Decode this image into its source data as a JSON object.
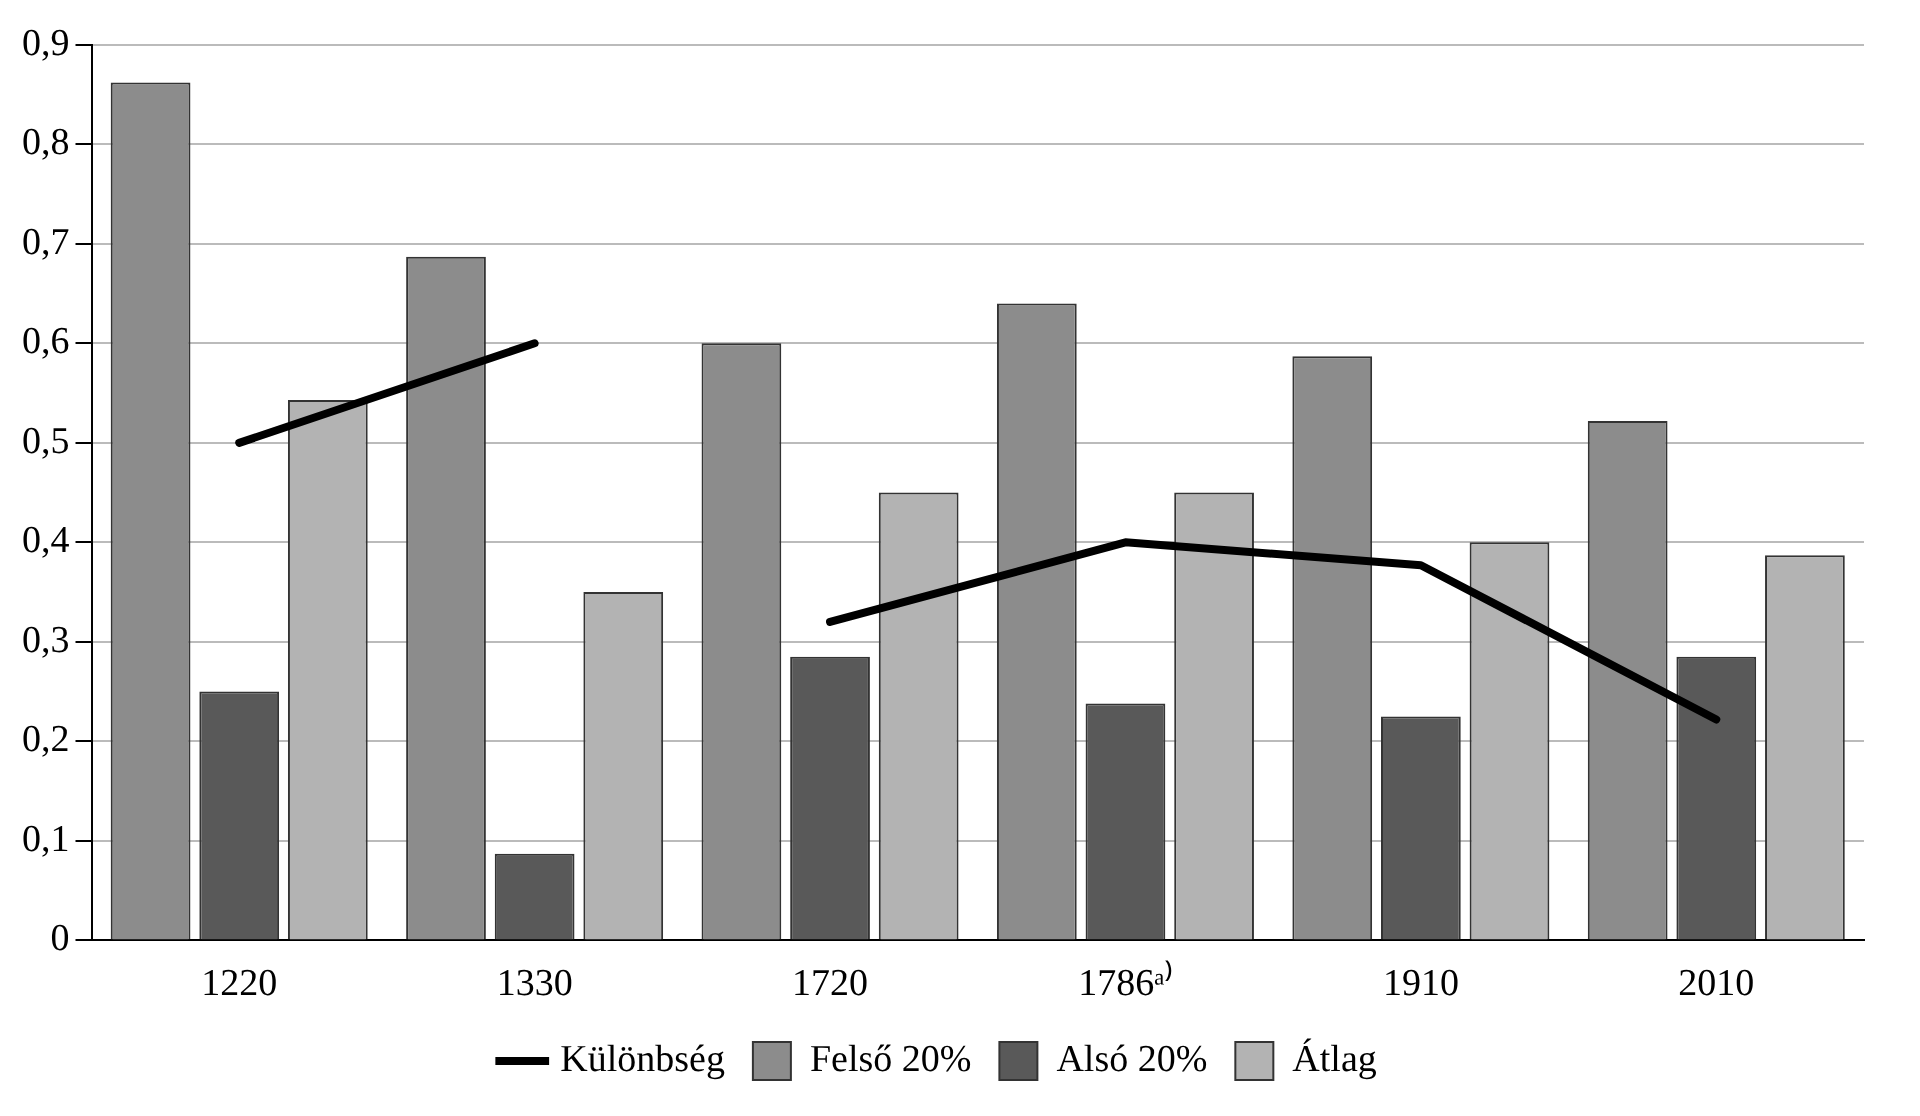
{
  "chart_data": {
    "type": "bar",
    "categories": [
      "1220",
      "1330",
      "1720",
      "1786ᵃ⁾",
      "1910",
      "2010"
    ],
    "series": [
      {
        "name": "Felső 20%",
        "color": "#8c8c8c",
        "values": [
          0.862,
          0.687,
          0.6,
          0.64,
          0.587,
          0.522
        ]
      },
      {
        "name": "Alsó 20%",
        "color": "#595959",
        "values": [
          0.25,
          0.087,
          0.285,
          0.238,
          0.225,
          0.285
        ]
      },
      {
        "name": "Átlag",
        "color": "#b3b3b3",
        "values": [
          0.543,
          0.35,
          0.45,
          0.45,
          0.4,
          0.387
        ]
      },
      {
        "name": "Különbség",
        "type": "line",
        "color": "#000000",
        "values": [
          0.5,
          0.6,
          null,
          null,
          null,
          null
        ]
      },
      {
        "type": "line",
        "color": "#000000",
        "values": [
          null,
          null,
          0.32,
          0.4,
          0.377,
          0.222
        ]
      }
    ],
    "ylim": [
      0,
      0.9
    ],
    "yticks": [
      0,
      {
        "value": 0.1,
        "label": "0,1"
      },
      {
        "value": 0.2,
        "label": "0,2"
      },
      {
        "value": 0.3,
        "label": "0,3"
      },
      {
        "value": 0.4,
        "label": "0,4"
      },
      {
        "value": 0.5,
        "label": "0,5"
      },
      {
        "value": 0.6,
        "label": "0,6"
      },
      {
        "value": 0.7,
        "label": "0,7"
      },
      {
        "value": 0.8,
        "label": "0,8"
      },
      {
        "value": 0.9,
        "label": "0,9"
      }
    ],
    "grid": "y",
    "legend": "bottom",
    "marker": "none",
    "line_style": "solid"
  }
}
